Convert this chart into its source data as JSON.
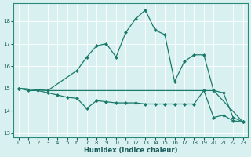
{
  "xlabel": "Humidex (Indice chaleur)",
  "bg_color": "#d8f0f0",
  "line_color": "#1a7a6a",
  "xlim": [
    -0.5,
    23.5
  ],
  "ylim": [
    12.8,
    18.8
  ],
  "yticks": [
    13,
    14,
    15,
    16,
    17,
    18
  ],
  "xticks": [
    0,
    1,
    2,
    3,
    4,
    5,
    6,
    7,
    8,
    9,
    10,
    11,
    12,
    13,
    14,
    15,
    16,
    17,
    18,
    19,
    20,
    21,
    22,
    23
  ],
  "line1_x": [
    0,
    1,
    2,
    3,
    4,
    5,
    6,
    7,
    8,
    9,
    10,
    11,
    12,
    13,
    14,
    15,
    16,
    17,
    18,
    19,
    20,
    21,
    22,
    23
  ],
  "line1_y": [
    15.0,
    14.9,
    14.9,
    14.8,
    14.7,
    14.6,
    14.55,
    14.1,
    14.45,
    14.4,
    14.35,
    14.35,
    14.35,
    14.3,
    14.3,
    14.3,
    14.3,
    14.3,
    14.3,
    14.9,
    13.7,
    13.8,
    13.55,
    13.5
  ],
  "line2_x": [
    0,
    3,
    6,
    7,
    8,
    9,
    10,
    11,
    12,
    13,
    14,
    15,
    16,
    17,
    18,
    19,
    20,
    21,
    22,
    23
  ],
  "line2_y": [
    15.0,
    14.9,
    15.8,
    16.4,
    16.9,
    17.0,
    16.4,
    17.5,
    18.1,
    18.5,
    17.6,
    17.4,
    15.3,
    16.2,
    16.5,
    16.5,
    14.9,
    14.8,
    13.7,
    13.5
  ],
  "line3_x": [
    0,
    3,
    20,
    23
  ],
  "line3_y": [
    15.0,
    14.9,
    14.9,
    13.5
  ]
}
